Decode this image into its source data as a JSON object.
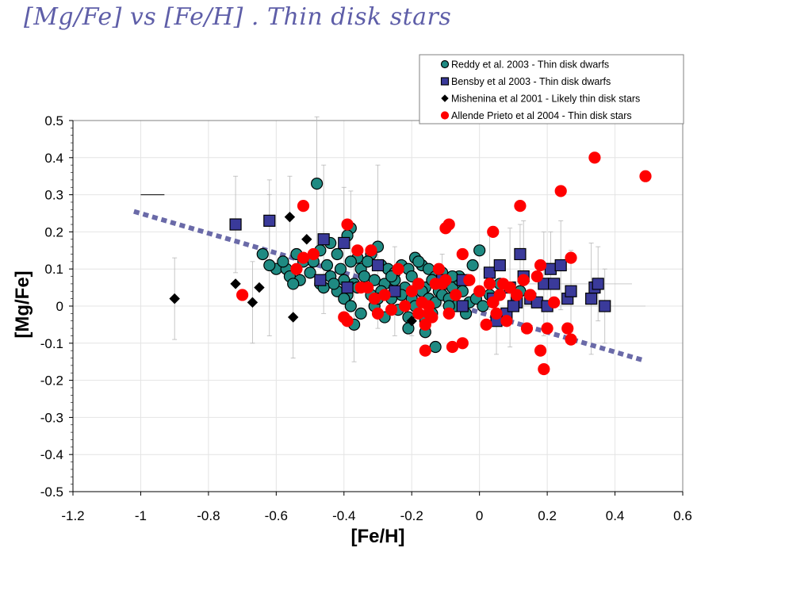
{
  "slide": {
    "title": "[Mg/Fe] vs [Fe/H] . Thin disk stars"
  },
  "chart_data": {
    "type": "scatter",
    "title": "",
    "xlabel": "[Fe/H]",
    "ylabel": "[Mg/Fe]",
    "xlim": [
      -1.2,
      0.6
    ],
    "ylim": [
      -0.5,
      0.5
    ],
    "x_ticks": [
      "-1.2",
      "-1",
      "-0.8",
      "-0.6",
      "-0.4",
      "-0.2",
      "0",
      "0.2",
      "0.4",
      "0.6"
    ],
    "y_ticks": [
      "0.5",
      "0.4",
      "0.3",
      "0.2",
      "0.1",
      "0",
      "-0.1",
      "-0.2",
      "-0.3",
      "-0.4",
      "-0.5"
    ],
    "grid": true,
    "legend_position": "top-right",
    "trend_line": {
      "style": "dashed",
      "color": "#6a6aa8",
      "x": [
        -1.02,
        0.48
      ],
      "y": [
        0.255,
        -0.145
      ]
    },
    "series": [
      {
        "name": "Reddy et al. 2003 - Thin disk dwarfs",
        "marker": "circle",
        "color": "#1f8a82",
        "edge": "#000000",
        "points": [
          [
            -0.48,
            0.33
          ],
          [
            -0.38,
            0.21
          ],
          [
            -0.39,
            0.19
          ],
          [
            -0.44,
            0.17
          ],
          [
            -0.32,
            0.14
          ],
          [
            -0.3,
            0.16
          ],
          [
            -0.47,
            0.15
          ],
          [
            -0.54,
            0.14
          ],
          [
            -0.42,
            0.14
          ],
          [
            -0.36,
            0.13
          ],
          [
            -0.6,
            0.1
          ],
          [
            -0.57,
            0.1
          ],
          [
            -0.62,
            0.11
          ],
          [
            -0.52,
            0.12
          ],
          [
            -0.49,
            0.12
          ],
          [
            -0.45,
            0.11
          ],
          [
            -0.41,
            0.1
          ],
          [
            -0.38,
            0.12
          ],
          [
            -0.35,
            0.1
          ],
          [
            -0.33,
            0.12
          ],
          [
            -0.29,
            0.11
          ],
          [
            -0.27,
            0.1
          ],
          [
            -0.25,
            0.09
          ],
          [
            -0.23,
            0.11
          ],
          [
            -0.21,
            0.1
          ],
          [
            -0.19,
            0.13
          ],
          [
            -0.17,
            0.11
          ],
          [
            -0.15,
            0.1
          ],
          [
            -0.13,
            0.08
          ],
          [
            -0.11,
            0.09
          ],
          [
            -0.56,
            0.08
          ],
          [
            -0.53,
            0.07
          ],
          [
            -0.5,
            0.09
          ],
          [
            -0.47,
            0.06
          ],
          [
            -0.44,
            0.08
          ],
          [
            -0.4,
            0.07
          ],
          [
            -0.37,
            0.06
          ],
          [
            -0.34,
            0.08
          ],
          [
            -0.31,
            0.07
          ],
          [
            -0.28,
            0.06
          ],
          [
            -0.25,
            0.07
          ],
          [
            -0.22,
            0.05
          ],
          [
            -0.2,
            0.08
          ],
          [
            -0.18,
            0.06
          ],
          [
            -0.16,
            0.05
          ],
          [
            -0.14,
            0.07
          ],
          [
            -0.12,
            0.04
          ],
          [
            -0.1,
            0.06
          ],
          [
            -0.08,
            0.05
          ],
          [
            -0.06,
            0.07
          ],
          [
            -0.55,
            0.06
          ],
          [
            -0.46,
            0.05
          ],
          [
            -0.42,
            0.04
          ],
          [
            -0.39,
            0.03
          ],
          [
            -0.36,
            0.05
          ],
          [
            -0.32,
            0.03
          ],
          [
            -0.29,
            0.04
          ],
          [
            -0.26,
            0.02
          ],
          [
            -0.23,
            0.03
          ],
          [
            -0.2,
            0.02
          ],
          [
            -0.17,
            0.04
          ],
          [
            -0.15,
            0.02
          ],
          [
            -0.13,
            0.01
          ],
          [
            -0.11,
            0.03
          ],
          [
            -0.09,
            0.02
          ],
          [
            -0.07,
            0.0
          ],
          [
            -0.05,
            0.04
          ],
          [
            -0.03,
            0.01
          ],
          [
            -0.01,
            0.02
          ],
          [
            0.01,
            0.0
          ],
          [
            -0.4,
            0.02
          ],
          [
            -0.38,
            0.0
          ],
          [
            -0.35,
            -0.02
          ],
          [
            -0.31,
            0.0
          ],
          [
            -0.28,
            -0.03
          ],
          [
            -0.24,
            -0.01
          ],
          [
            -0.21,
            -0.03
          ],
          [
            -0.19,
            0.0
          ],
          [
            -0.16,
            -0.04
          ],
          [
            -0.14,
            -0.02
          ],
          [
            -0.37,
            -0.05
          ],
          [
            -0.21,
            -0.06
          ],
          [
            -0.16,
            -0.07
          ],
          [
            -0.13,
            -0.11
          ],
          [
            -0.06,
            0.08
          ],
          [
            -0.02,
            0.11
          ],
          [
            0.0,
            0.15
          ],
          [
            -0.1,
            0.07
          ],
          [
            0.03,
            0.03
          ],
          [
            0.06,
            0.06
          ],
          [
            -0.09,
            0.0
          ],
          [
            -0.04,
            -0.02
          ],
          [
            -0.58,
            0.12
          ],
          [
            -0.64,
            0.14
          ],
          [
            -0.43,
            0.06
          ],
          [
            -0.26,
            0.08
          ],
          [
            -0.18,
            0.12
          ],
          [
            -0.08,
            0.08
          ],
          [
            0.12,
            0.04
          ],
          [
            -0.3,
            0.02
          ]
        ]
      },
      {
        "name": "Bensby et al 2003 - Thin disk dwarfs",
        "marker": "square",
        "color": "#3a3a9a",
        "edge": "#000000",
        "points": [
          [
            -0.72,
            0.22
          ],
          [
            -0.62,
            0.23
          ],
          [
            -0.46,
            0.18
          ],
          [
            -0.4,
            0.17
          ],
          [
            -0.47,
            0.07
          ],
          [
            -0.39,
            0.05
          ],
          [
            -0.3,
            0.11
          ],
          [
            -0.25,
            0.04
          ],
          [
            -0.11,
            0.07
          ],
          [
            -0.05,
            0.07
          ],
          [
            -0.05,
            0.0
          ],
          [
            0.03,
            0.09
          ],
          [
            0.06,
            0.11
          ],
          [
            0.04,
            0.02
          ],
          [
            0.08,
            -0.02
          ],
          [
            0.09,
            0.05
          ],
          [
            0.11,
            0.01
          ],
          [
            0.12,
            0.14
          ],
          [
            0.13,
            0.08
          ],
          [
            0.15,
            0.02
          ],
          [
            0.17,
            0.01
          ],
          [
            0.19,
            0.06
          ],
          [
            0.2,
            0.0
          ],
          [
            0.21,
            0.1
          ],
          [
            0.22,
            0.06
          ],
          [
            0.24,
            0.11
          ],
          [
            0.26,
            0.02
          ],
          [
            0.27,
            0.04
          ],
          [
            0.33,
            0.02
          ],
          [
            0.34,
            0.05
          ],
          [
            0.35,
            0.06
          ],
          [
            0.37,
            0.0
          ],
          [
            0.05,
            -0.04
          ],
          [
            0.1,
            0.0
          ]
        ]
      },
      {
        "name": "Mishenina et al 2001 - Likely thin disk stars",
        "marker": "diamond",
        "color": "#000000",
        "edge": "#000000",
        "points": [
          [
            -0.9,
            0.02
          ],
          [
            -0.72,
            0.06
          ],
          [
            -0.67,
            0.01
          ],
          [
            -0.65,
            0.05
          ],
          [
            -0.56,
            0.24
          ],
          [
            -0.55,
            -0.03
          ],
          [
            -0.51,
            0.18
          ],
          [
            -0.2,
            -0.04
          ]
        ]
      },
      {
        "name": "Allende Prieto et al 2004 - Thin disk stars",
        "marker": "circle",
        "color": "#ff0000",
        "edge": "#ff0000",
        "points": [
          [
            -0.7,
            0.03
          ],
          [
            -0.52,
            0.13
          ],
          [
            -0.52,
            0.27
          ],
          [
            -0.49,
            0.14
          ],
          [
            -0.54,
            0.1
          ],
          [
            -0.39,
            0.22
          ],
          [
            -0.36,
            0.15
          ],
          [
            -0.35,
            0.05
          ],
          [
            -0.4,
            -0.03
          ],
          [
            -0.39,
            -0.04
          ],
          [
            -0.31,
            0.02
          ],
          [
            -0.3,
            -0.02
          ],
          [
            -0.28,
            0.03
          ],
          [
            -0.26,
            -0.01
          ],
          [
            -0.24,
            0.1
          ],
          [
            -0.22,
            0.0
          ],
          [
            -0.2,
            0.04
          ],
          [
            -0.18,
            -0.02
          ],
          [
            -0.17,
            0.01
          ],
          [
            -0.16,
            -0.05
          ],
          [
            -0.15,
            0.0
          ],
          [
            -0.16,
            -0.12
          ],
          [
            -0.14,
            -0.03
          ],
          [
            -0.13,
            0.06
          ],
          [
            -0.12,
            0.1
          ],
          [
            -0.1,
            0.07
          ],
          [
            -0.09,
            -0.02
          ],
          [
            -0.08,
            -0.11
          ],
          [
            -0.07,
            0.03
          ],
          [
            -0.05,
            -0.1
          ],
          [
            -0.03,
            0.07
          ],
          [
            0.03,
            0.06
          ],
          [
            0.04,
            0.01
          ],
          [
            0.05,
            -0.02
          ],
          [
            0.06,
            0.03
          ],
          [
            0.07,
            0.06
          ],
          [
            0.08,
            -0.04
          ],
          [
            0.09,
            0.05
          ],
          [
            0.11,
            0.03
          ],
          [
            0.12,
            0.27
          ],
          [
            0.13,
            0.07
          ],
          [
            0.14,
            -0.06
          ],
          [
            0.15,
            0.03
          ],
          [
            0.17,
            0.08
          ],
          [
            0.18,
            -0.12
          ],
          [
            0.19,
            -0.17
          ],
          [
            0.2,
            -0.06
          ],
          [
            0.22,
            0.01
          ],
          [
            0.24,
            0.31
          ],
          [
            0.26,
            -0.06
          ],
          [
            0.27,
            -0.09
          ],
          [
            0.27,
            0.13
          ],
          [
            0.34,
            0.4
          ],
          [
            0.49,
            0.35
          ],
          [
            -0.09,
            0.22
          ],
          [
            -0.1,
            0.21
          ],
          [
            -0.05,
            0.14
          ],
          [
            0.04,
            0.2
          ],
          [
            0.02,
            -0.05
          ],
          [
            -0.18,
            0.06
          ],
          [
            -0.15,
            -0.02
          ],
          [
            -0.11,
            0.06
          ],
          [
            0.0,
            0.04
          ],
          [
            0.18,
            0.11
          ],
          [
            -0.32,
            0.15
          ],
          [
            -0.33,
            0.05
          ]
        ]
      }
    ],
    "error_bars": [
      [
        -0.9,
        0.02,
        0.11
      ],
      [
        -0.72,
        0.22,
        0.13
      ],
      [
        -0.62,
        0.23,
        0.11
      ],
      [
        -0.56,
        0.24,
        0.11
      ],
      [
        -0.55,
        -0.03,
        0.11
      ],
      [
        -0.48,
        0.33,
        0.18
      ],
      [
        -0.46,
        0.18,
        0.2
      ],
      [
        -0.4,
        0.17,
        0.15
      ],
      [
        -0.38,
        0.21,
        0.1
      ],
      [
        -0.37,
        0.0,
        0.15
      ],
      [
        -0.3,
        0.16,
        0.22
      ],
      [
        -0.25,
        0.04,
        0.12
      ],
      [
        -0.2,
        0.02,
        0.1
      ],
      [
        -0.11,
        0.07,
        0.07
      ],
      [
        0.03,
        0.09,
        0.1
      ],
      [
        0.12,
        0.14,
        0.08
      ],
      [
        0.13,
        0.08,
        0.15
      ],
      [
        0.19,
        0.06,
        0.14
      ],
      [
        0.21,
        0.1,
        0.1
      ],
      [
        0.24,
        0.11,
        0.12
      ],
      [
        0.27,
        0.04,
        0.11
      ],
      [
        0.33,
        0.02,
        0.15
      ],
      [
        0.35,
        0.06,
        0.1
      ],
      [
        0.37,
        0.0,
        0.1
      ],
      [
        -0.67,
        0.01,
        0.11
      ],
      [
        -0.62,
        0.11,
        0.19
      ],
      [
        0.05,
        -0.04,
        0.09
      ],
      [
        0.09,
        0.05,
        0.16
      ]
    ],
    "top_left_bar": {
      "x": [
        -1.0,
        -0.93
      ],
      "y": 0.3
    }
  }
}
